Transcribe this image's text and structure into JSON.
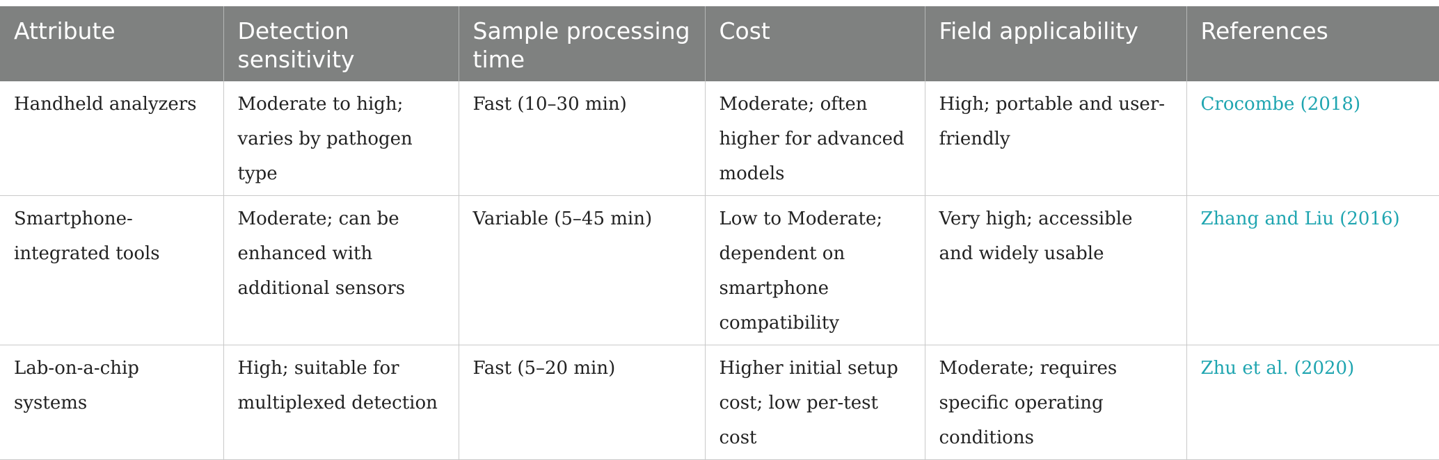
{
  "table": {
    "headers": [
      "Attribute",
      "Detection sensitivity",
      "Sample processing time",
      "Cost",
      "Field applicability",
      "References"
    ],
    "rows": [
      {
        "attribute": "Handheld analyzers",
        "sensitivity": "Moderate to high; varies by pathogen type",
        "time": "Fast (10–30 min)",
        "cost": "Moderate; often higher for advanced models",
        "field": "High; portable and user-friendly",
        "reference": "Crocombe (2018)"
      },
      {
        "attribute": "Smartphone-integrated tools",
        "sensitivity": "Moderate; can be enhanced with additional sensors",
        "time": "Variable (5–45 min)",
        "cost": "Low to Moderate; dependent on smartphone compatibility",
        "field": "Very high; accessible and widely usable",
        "reference": "Zhang and Liu (2016)"
      },
      {
        "attribute": "Lab-on-a-chip systems",
        "sensitivity": "High; suitable for multiplexed detection",
        "time": "Fast (5–20 min)",
        "cost": "Higher initial setup cost; low per-test cost",
        "field": "Moderate; requires specific operating conditions",
        "reference": "Zhu et al. (2020)"
      }
    ]
  },
  "colors": {
    "header_bg": "#7f8180",
    "header_text": "#ffffff",
    "reference_link": "#1fa5b0",
    "grid_line": "#c9c9c9"
  }
}
